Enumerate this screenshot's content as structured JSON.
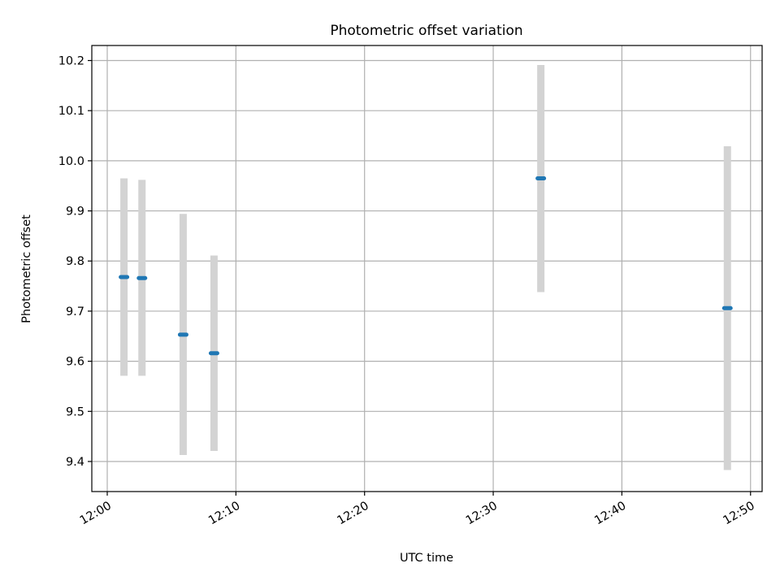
{
  "chart_data": {
    "type": "scatter",
    "title": "Photometric offset variation",
    "xlabel": "UTC time",
    "ylabel": "Photometric offset",
    "x_unit": "HH:MM (UTC)",
    "xlim": [
      "11:58.8",
      "12:50.9"
    ],
    "ylim": [
      9.34,
      10.23
    ],
    "x_ticks": [
      "12:00",
      "12:10",
      "12:20",
      "12:30",
      "12:40",
      "12:50"
    ],
    "y_ticks": [
      "9.4",
      "9.5",
      "9.6",
      "9.7",
      "9.8",
      "9.9",
      "10.0",
      "10.1",
      "10.2"
    ],
    "grid": true,
    "series": [
      {
        "marker_color": "#1f77b4",
        "errorbar_color": "#d3d3d3",
        "points": [
          {
            "x": "12:01.3",
            "y": 9.768,
            "yerr_low": 9.571,
            "yerr_high": 9.965
          },
          {
            "x": "12:02.7",
            "y": 9.766,
            "yerr_low": 9.571,
            "yerr_high": 9.962
          },
          {
            "x": "12:05.9",
            "y": 9.653,
            "yerr_low": 9.413,
            "yerr_high": 9.894
          },
          {
            "x": "12:08.3",
            "y": 9.616,
            "yerr_low": 9.421,
            "yerr_high": 9.811
          },
          {
            "x": "12:33.7",
            "y": 9.965,
            "yerr_low": 9.738,
            "yerr_high": 10.191
          },
          {
            "x": "12:48.2",
            "y": 9.706,
            "yerr_low": 9.383,
            "yerr_high": 10.029
          }
        ]
      }
    ]
  }
}
